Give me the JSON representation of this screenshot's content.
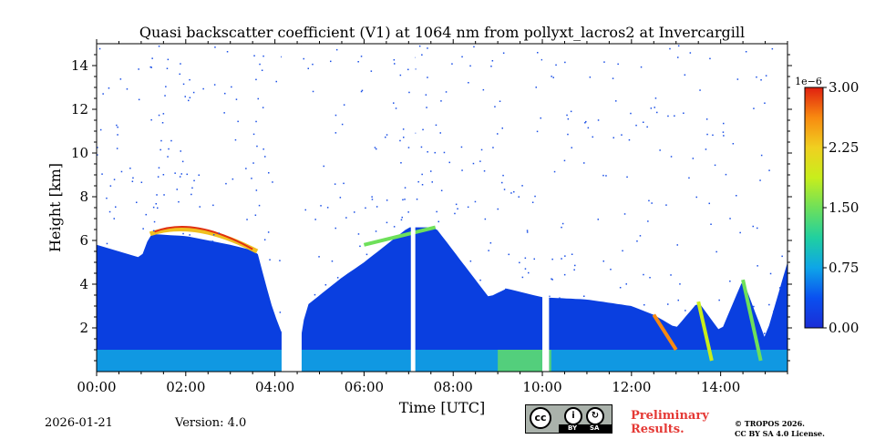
{
  "chart_data": {
    "type": "heatmap",
    "title": "Quasi backscatter coefficient (V1) at 1064 nm from pollyxt_lacros2 at Invercargill",
    "xlabel": "Time [UTC]",
    "ylabel": "Height [km]",
    "xlim": [
      0,
      15.5
    ],
    "ylim": [
      0,
      15
    ],
    "x_tick_values": [
      0,
      2,
      4,
      6,
      8,
      10,
      12,
      14
    ],
    "x_tick_labels": [
      "00:00",
      "02:00",
      "04:00",
      "06:00",
      "08:00",
      "10:00",
      "12:00",
      "14:00"
    ],
    "y_tick_values": [
      2,
      4,
      6,
      8,
      10,
      12,
      14
    ],
    "y_tick_labels": [
      "2",
      "4",
      "6",
      "8",
      "10",
      "12",
      "14"
    ],
    "colorbar": {
      "range": [
        0.0,
        3.0
      ],
      "exponent_label": "1e−6",
      "tick_values": [
        0.0,
        0.75,
        1.5,
        2.25,
        3.0
      ],
      "tick_labels": [
        "0.00",
        "0.75",
        "1.50",
        "2.25",
        "3.00"
      ],
      "colormap": [
        "#1a2dd6",
        "#0a50f0",
        "#0ea5e8",
        "#20d0a0",
        "#6ee05a",
        "#c8ee1c",
        "#f0d020",
        "#f88a10",
        "#e02010"
      ]
    },
    "layer_top_km": [
      [
        0.0,
        5.8
      ],
      [
        0.5,
        5.5
      ],
      [
        1.0,
        5.2
      ],
      [
        1.2,
        6.3
      ],
      [
        2.0,
        6.2
      ],
      [
        2.5,
        6.0
      ],
      [
        3.0,
        5.8
      ],
      [
        3.6,
        5.5
      ],
      [
        3.9,
        3.2
      ],
      [
        4.1,
        2.0
      ],
      [
        4.5,
        0.5
      ],
      [
        4.7,
        3.0
      ],
      [
        5.5,
        4.3
      ],
      [
        6.0,
        5.0
      ],
      [
        7.0,
        6.6
      ],
      [
        7.6,
        6.6
      ],
      [
        8.2,
        5.0
      ],
      [
        8.8,
        3.4
      ],
      [
        9.2,
        3.8
      ],
      [
        10.0,
        3.4
      ],
      [
        11.0,
        3.3
      ],
      [
        12.0,
        3.0
      ],
      [
        12.5,
        2.6
      ],
      [
        13.0,
        2.0
      ],
      [
        13.5,
        3.2
      ],
      [
        14.0,
        1.8
      ],
      [
        14.5,
        4.2
      ],
      [
        15.0,
        1.5
      ],
      [
        15.5,
        5.0
      ]
    ],
    "aerosol_layer_top_km": 1.0,
    "data_gaps_hours": [
      [
        4.15,
        4.6
      ],
      [
        7.05,
        7.15
      ],
      [
        10.0,
        10.15
      ]
    ]
  },
  "footer": {
    "date": "2026-01-21",
    "version": "Version: 4.0",
    "preliminary_line1": "Preliminary",
    "preliminary_line2": "Results.",
    "copyright_line1": "© TROPOS 2026.",
    "copyright_line2": "CC BY SA 4.0 License.",
    "license_badge": {
      "cc": "cc",
      "by": "BY",
      "sa": "SA"
    }
  }
}
